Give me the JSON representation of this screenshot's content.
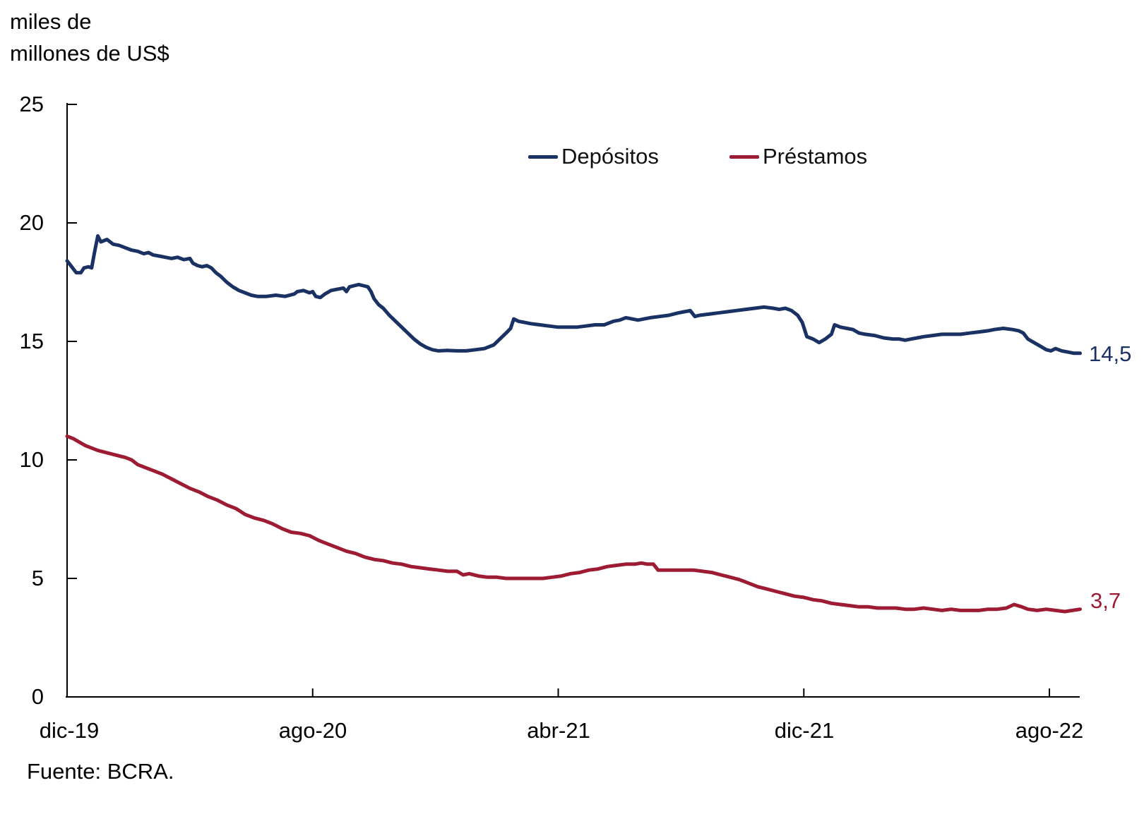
{
  "title": {
    "line1": "miles de",
    "line2": "millones de US$"
  },
  "legend": [
    {
      "key": "depositos",
      "label": "Depósitos",
      "color": "#1a3263"
    },
    {
      "key": "prestamos",
      "label": "Préstamos",
      "color": "#9d1b33"
    }
  ],
  "source": "Fuente: BCRA.",
  "end_labels": {
    "depositos": "14,5",
    "prestamos": "3,7"
  },
  "axes": {
    "y_tick_labels": [
      "0",
      "5",
      "10",
      "15",
      "20",
      "25"
    ],
    "x_tick_labels": [
      "dic-19",
      "ago-20",
      "abr-21",
      "dic-21",
      "ago-22"
    ]
  },
  "chart_data": {
    "type": "line",
    "title": "",
    "ylabel": "miles de millones de US$",
    "xlabel": "",
    "ylim": [
      0,
      25
    ],
    "y_ticks": [
      0,
      5,
      10,
      15,
      20,
      25
    ],
    "x_tick_labels": [
      "dic-19",
      "ago-20",
      "abr-21",
      "dic-21",
      "ago-22"
    ],
    "x_tick_months": [
      0,
      8,
      16,
      24,
      32
    ],
    "x_unit": "months after dic-19 (0 = dic-19, 33 = sep-22)",
    "axis_color": "#000000",
    "grid": false,
    "legend_position": "top-center-inside",
    "series": [
      {
        "name": "Depósitos",
        "key": "depositos",
        "color": "#1a3263",
        "end_label": "14,5",
        "end_value": 14.5,
        "points": [
          [
            0,
            18.4
          ],
          [
            0.15,
            18.15
          ],
          [
            0.3,
            17.9
          ],
          [
            0.45,
            17.9
          ],
          [
            0.55,
            18.1
          ],
          [
            0.7,
            18.15
          ],
          [
            0.8,
            18.1
          ],
          [
            0.9,
            18.8
          ],
          [
            1.0,
            19.45
          ],
          [
            1.1,
            19.2
          ],
          [
            1.3,
            19.3
          ],
          [
            1.5,
            19.1
          ],
          [
            1.7,
            19.05
          ],
          [
            1.9,
            18.95
          ],
          [
            2.1,
            18.85
          ],
          [
            2.3,
            18.8
          ],
          [
            2.5,
            18.7
          ],
          [
            2.65,
            18.75
          ],
          [
            2.8,
            18.65
          ],
          [
            3.0,
            18.6
          ],
          [
            3.2,
            18.55
          ],
          [
            3.4,
            18.5
          ],
          [
            3.6,
            18.55
          ],
          [
            3.8,
            18.45
          ],
          [
            4.0,
            18.5
          ],
          [
            4.1,
            18.3
          ],
          [
            4.25,
            18.2
          ],
          [
            4.4,
            18.15
          ],
          [
            4.55,
            18.2
          ],
          [
            4.7,
            18.1
          ],
          [
            4.85,
            17.9
          ],
          [
            5.0,
            17.75
          ],
          [
            5.2,
            17.5
          ],
          [
            5.4,
            17.3
          ],
          [
            5.6,
            17.15
          ],
          [
            5.8,
            17.05
          ],
          [
            6.0,
            16.95
          ],
          [
            6.2,
            16.9
          ],
          [
            6.5,
            16.9
          ],
          [
            6.8,
            16.95
          ],
          [
            7.1,
            16.9
          ],
          [
            7.4,
            17.0
          ],
          [
            7.5,
            17.1
          ],
          [
            7.7,
            17.15
          ],
          [
            7.9,
            17.05
          ],
          [
            8.0,
            17.1
          ],
          [
            8.1,
            16.9
          ],
          [
            8.25,
            16.85
          ],
          [
            8.4,
            17.0
          ],
          [
            8.6,
            17.15
          ],
          [
            8.8,
            17.2
          ],
          [
            9.0,
            17.25
          ],
          [
            9.1,
            17.1
          ],
          [
            9.2,
            17.3
          ],
          [
            9.35,
            17.35
          ],
          [
            9.5,
            17.4
          ],
          [
            9.65,
            17.35
          ],
          [
            9.8,
            17.3
          ],
          [
            9.9,
            17.1
          ],
          [
            10.0,
            16.8
          ],
          [
            10.15,
            16.55
          ],
          [
            10.3,
            16.4
          ],
          [
            10.5,
            16.1
          ],
          [
            10.7,
            15.85
          ],
          [
            10.9,
            15.6
          ],
          [
            11.1,
            15.35
          ],
          [
            11.3,
            15.1
          ],
          [
            11.5,
            14.9
          ],
          [
            11.7,
            14.75
          ],
          [
            11.9,
            14.65
          ],
          [
            12.1,
            14.6
          ],
          [
            12.4,
            14.62
          ],
          [
            12.7,
            14.6
          ],
          [
            13.0,
            14.6
          ],
          [
            13.3,
            14.65
          ],
          [
            13.6,
            14.7
          ],
          [
            13.9,
            14.85
          ],
          [
            14.1,
            15.1
          ],
          [
            14.3,
            15.35
          ],
          [
            14.45,
            15.55
          ],
          [
            14.55,
            15.95
          ],
          [
            14.7,
            15.85
          ],
          [
            14.9,
            15.8
          ],
          [
            15.1,
            15.75
          ],
          [
            15.4,
            15.7
          ],
          [
            15.7,
            15.65
          ],
          [
            16.0,
            15.6
          ],
          [
            16.3,
            15.6
          ],
          [
            16.6,
            15.6
          ],
          [
            16.9,
            15.65
          ],
          [
            17.2,
            15.7
          ],
          [
            17.5,
            15.7
          ],
          [
            17.8,
            15.85
          ],
          [
            18.0,
            15.9
          ],
          [
            18.2,
            16.0
          ],
          [
            18.4,
            15.95
          ],
          [
            18.6,
            15.9
          ],
          [
            18.8,
            15.95
          ],
          [
            19.0,
            16.0
          ],
          [
            19.3,
            16.05
          ],
          [
            19.6,
            16.1
          ],
          [
            19.9,
            16.2
          ],
          [
            20.1,
            16.25
          ],
          [
            20.3,
            16.3
          ],
          [
            20.45,
            16.05
          ],
          [
            20.6,
            16.1
          ],
          [
            20.9,
            16.15
          ],
          [
            21.2,
            16.2
          ],
          [
            21.5,
            16.25
          ],
          [
            21.8,
            16.3
          ],
          [
            22.1,
            16.35
          ],
          [
            22.4,
            16.4
          ],
          [
            22.7,
            16.45
          ],
          [
            23.0,
            16.4
          ],
          [
            23.2,
            16.35
          ],
          [
            23.4,
            16.4
          ],
          [
            23.6,
            16.3
          ],
          [
            23.8,
            16.1
          ],
          [
            23.95,
            15.8
          ],
          [
            24.1,
            15.2
          ],
          [
            24.3,
            15.1
          ],
          [
            24.5,
            14.95
          ],
          [
            24.7,
            15.1
          ],
          [
            24.9,
            15.3
          ],
          [
            25.0,
            15.7
          ],
          [
            25.2,
            15.6
          ],
          [
            25.4,
            15.55
          ],
          [
            25.6,
            15.5
          ],
          [
            25.8,
            15.35
          ],
          [
            26.0,
            15.3
          ],
          [
            26.3,
            15.25
          ],
          [
            26.6,
            15.15
          ],
          [
            26.9,
            15.1
          ],
          [
            27.1,
            15.1
          ],
          [
            27.3,
            15.05
          ],
          [
            27.5,
            15.1
          ],
          [
            27.7,
            15.15
          ],
          [
            27.9,
            15.2
          ],
          [
            28.2,
            15.25
          ],
          [
            28.5,
            15.3
          ],
          [
            28.8,
            15.3
          ],
          [
            29.1,
            15.3
          ],
          [
            29.4,
            15.35
          ],
          [
            29.7,
            15.4
          ],
          [
            30.0,
            15.45
          ],
          [
            30.2,
            15.5
          ],
          [
            30.5,
            15.55
          ],
          [
            30.8,
            15.5
          ],
          [
            31.0,
            15.45
          ],
          [
            31.15,
            15.35
          ],
          [
            31.3,
            15.1
          ],
          [
            31.5,
            14.95
          ],
          [
            31.7,
            14.8
          ],
          [
            31.9,
            14.65
          ],
          [
            32.05,
            14.6
          ],
          [
            32.2,
            14.7
          ],
          [
            32.4,
            14.6
          ],
          [
            32.6,
            14.55
          ],
          [
            32.8,
            14.5
          ],
          [
            33.0,
            14.5
          ]
        ]
      },
      {
        "name": "Préstamos",
        "key": "prestamos",
        "color": "#9d1b33",
        "end_label": "3,7",
        "end_value": 3.7,
        "points": [
          [
            0,
            11.0
          ],
          [
            0.2,
            10.9
          ],
          [
            0.4,
            10.75
          ],
          [
            0.6,
            10.6
          ],
          [
            0.8,
            10.5
          ],
          [
            1.0,
            10.4
          ],
          [
            1.3,
            10.3
          ],
          [
            1.6,
            10.2
          ],
          [
            1.9,
            10.1
          ],
          [
            2.1,
            10.0
          ],
          [
            2.3,
            9.8
          ],
          [
            2.5,
            9.7
          ],
          [
            2.8,
            9.55
          ],
          [
            3.1,
            9.4
          ],
          [
            3.4,
            9.2
          ],
          [
            3.7,
            9.0
          ],
          [
            4.0,
            8.8
          ],
          [
            4.3,
            8.65
          ],
          [
            4.6,
            8.45
          ],
          [
            4.9,
            8.3
          ],
          [
            5.2,
            8.1
          ],
          [
            5.5,
            7.95
          ],
          [
            5.8,
            7.7
          ],
          [
            6.1,
            7.55
          ],
          [
            6.4,
            7.45
          ],
          [
            6.7,
            7.3
          ],
          [
            7.0,
            7.1
          ],
          [
            7.3,
            6.95
          ],
          [
            7.6,
            6.9
          ],
          [
            7.9,
            6.8
          ],
          [
            8.2,
            6.6
          ],
          [
            8.5,
            6.45
          ],
          [
            8.8,
            6.3
          ],
          [
            9.1,
            6.15
          ],
          [
            9.4,
            6.05
          ],
          [
            9.7,
            5.9
          ],
          [
            10.0,
            5.8
          ],
          [
            10.3,
            5.75
          ],
          [
            10.6,
            5.65
          ],
          [
            10.9,
            5.6
          ],
          [
            11.2,
            5.5
          ],
          [
            11.5,
            5.45
          ],
          [
            11.8,
            5.4
          ],
          [
            12.1,
            5.35
          ],
          [
            12.4,
            5.3
          ],
          [
            12.7,
            5.3
          ],
          [
            12.9,
            5.15
          ],
          [
            13.1,
            5.2
          ],
          [
            13.4,
            5.1
          ],
          [
            13.7,
            5.05
          ],
          [
            14.0,
            5.05
          ],
          [
            14.3,
            5.0
          ],
          [
            14.6,
            5.0
          ],
          [
            14.9,
            5.0
          ],
          [
            15.2,
            5.0
          ],
          [
            15.5,
            5.0
          ],
          [
            15.8,
            5.05
          ],
          [
            16.1,
            5.1
          ],
          [
            16.4,
            5.2
          ],
          [
            16.7,
            5.25
          ],
          [
            17.0,
            5.35
          ],
          [
            17.3,
            5.4
          ],
          [
            17.6,
            5.5
          ],
          [
            17.9,
            5.55
          ],
          [
            18.2,
            5.6
          ],
          [
            18.5,
            5.6
          ],
          [
            18.7,
            5.65
          ],
          [
            18.9,
            5.6
          ],
          [
            19.1,
            5.6
          ],
          [
            19.25,
            5.35
          ],
          [
            19.5,
            5.35
          ],
          [
            19.8,
            5.35
          ],
          [
            20.1,
            5.35
          ],
          [
            20.4,
            5.35
          ],
          [
            20.7,
            5.3
          ],
          [
            21.0,
            5.25
          ],
          [
            21.3,
            5.15
          ],
          [
            21.6,
            5.05
          ],
          [
            21.9,
            4.95
          ],
          [
            22.2,
            4.8
          ],
          [
            22.5,
            4.65
          ],
          [
            22.8,
            4.55
          ],
          [
            23.1,
            4.45
          ],
          [
            23.4,
            4.35
          ],
          [
            23.7,
            4.25
          ],
          [
            24.0,
            4.2
          ],
          [
            24.3,
            4.1
          ],
          [
            24.6,
            4.05
          ],
          [
            24.9,
            3.95
          ],
          [
            25.2,
            3.9
          ],
          [
            25.5,
            3.85
          ],
          [
            25.8,
            3.8
          ],
          [
            26.1,
            3.8
          ],
          [
            26.4,
            3.75
          ],
          [
            26.7,
            3.75
          ],
          [
            27.0,
            3.75
          ],
          [
            27.3,
            3.7
          ],
          [
            27.6,
            3.7
          ],
          [
            27.9,
            3.75
          ],
          [
            28.2,
            3.7
          ],
          [
            28.5,
            3.65
          ],
          [
            28.8,
            3.7
          ],
          [
            29.1,
            3.65
          ],
          [
            29.4,
            3.65
          ],
          [
            29.7,
            3.65
          ],
          [
            30.0,
            3.7
          ],
          [
            30.3,
            3.7
          ],
          [
            30.6,
            3.75
          ],
          [
            30.85,
            3.9
          ],
          [
            31.1,
            3.8
          ],
          [
            31.3,
            3.7
          ],
          [
            31.6,
            3.65
          ],
          [
            31.9,
            3.7
          ],
          [
            32.2,
            3.65
          ],
          [
            32.5,
            3.6
          ],
          [
            32.75,
            3.65
          ],
          [
            33.0,
            3.7
          ]
        ]
      }
    ]
  }
}
